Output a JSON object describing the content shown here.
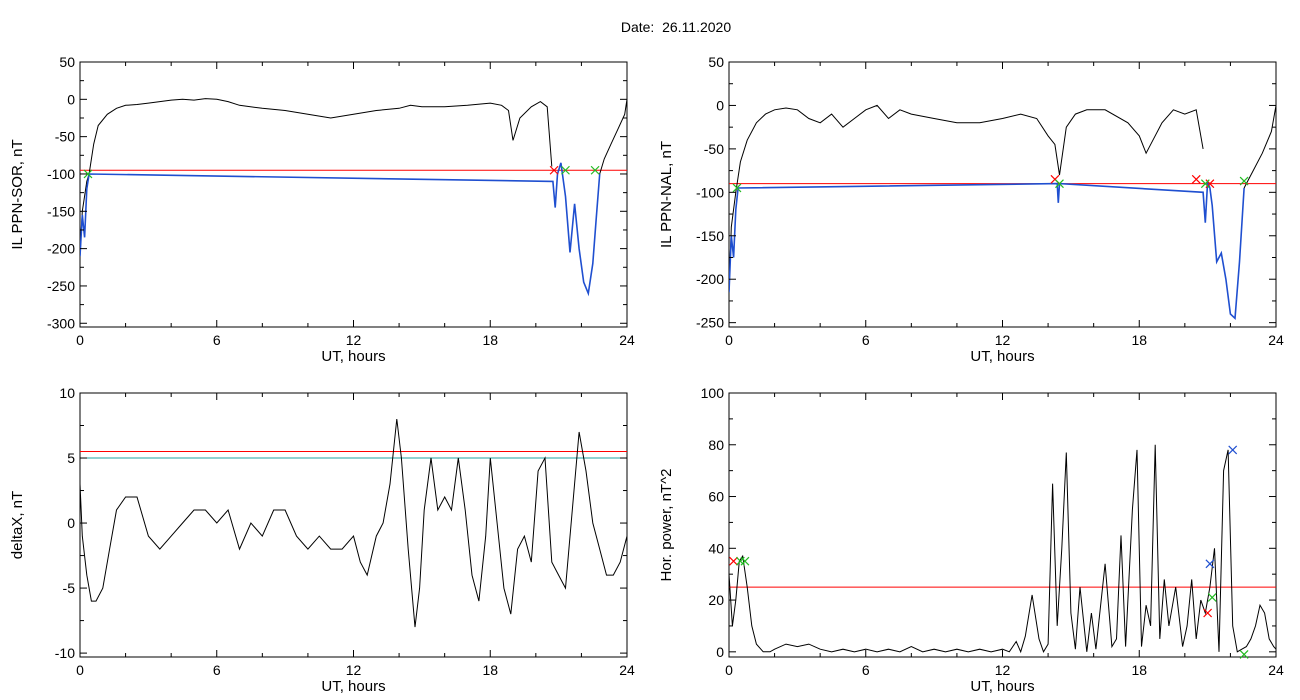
{
  "header": {
    "title": "Date:  26.11.2020"
  },
  "chart_data": [
    {
      "type": "line",
      "xlabel": "UT, hours",
      "ylabel": "IL PPN-SOR, nT",
      "xlim": [
        0,
        24
      ],
      "ylim": [
        -305,
        50
      ],
      "xticks": [
        0,
        6,
        12,
        18,
        24
      ],
      "yticks": [
        50,
        0,
        -50,
        -100,
        -150,
        -200,
        -250,
        -300
      ],
      "threshold": {
        "value": -95,
        "color": "#ff0000"
      },
      "series": [
        {
          "color": "#000000",
          "x": [
            0,
            0.1,
            0.3,
            0.4,
            0.6,
            0.8,
            1.2,
            1.6,
            2.0,
            2.5,
            3.0,
            3.5,
            4.0,
            4.5,
            5.0,
            5.5,
            6.0,
            6.5,
            7.0,
            8.0,
            9.0,
            10.0,
            11.0,
            12.0,
            13.0,
            14.0,
            14.5,
            15.0,
            16.0,
            17.0,
            18.0,
            18.5,
            18.8,
            19.0,
            19.3,
            19.8,
            20.2,
            20.5,
            20.7
          ],
          "y": [
            -210,
            -150,
            -110,
            -100,
            -60,
            -35,
            -20,
            -12,
            -8,
            -7,
            -5,
            -3,
            -1,
            0,
            -1,
            1,
            0,
            -3,
            -8,
            -12,
            -15,
            -20,
            -25,
            -20,
            -15,
            -12,
            -8,
            -10,
            -10,
            -8,
            -5,
            -8,
            -15,
            -55,
            -25,
            -10,
            -3,
            -10,
            -90
          ]
        },
        {
          "color": "#1f4fd0",
          "x": [
            0,
            0.1,
            0.2,
            0.3,
            0.4,
            20.75,
            20.85,
            20.95,
            21.1,
            21.3,
            21.5,
            21.7,
            21.9,
            22.1,
            22.3,
            22.5,
            22.65,
            22.8
          ],
          "y": [
            -210,
            -155,
            -185,
            -120,
            -100,
            -110,
            -145,
            -100,
            -85,
            -130,
            -205,
            -140,
            -200,
            -245,
            -260,
            -220,
            -160,
            -100
          ]
        },
        {
          "color": "#000000",
          "x": [
            22.8,
            23.0,
            23.3,
            23.6,
            23.9,
            24.0
          ],
          "y": [
            -100,
            -80,
            -60,
            -40,
            -20,
            0
          ]
        }
      ],
      "markers": [
        {
          "x": 0.35,
          "y": -100,
          "color": "#22bb22"
        },
        {
          "x": 20.8,
          "y": -95,
          "color": "#ff0000"
        },
        {
          "x": 21.3,
          "y": -95,
          "color": "#22bb22"
        },
        {
          "x": 22.6,
          "y": -95,
          "color": "#22bb22"
        }
      ]
    },
    {
      "type": "line",
      "xlabel": "UT, hours",
      "ylabel": "IL PPN-NAL, nT",
      "xlim": [
        0,
        24
      ],
      "ylim": [
        -255,
        50
      ],
      "xticks": [
        0,
        6,
        12,
        18,
        24
      ],
      "yticks": [
        50,
        0,
        -50,
        -100,
        -150,
        -200,
        -250
      ],
      "threshold": {
        "value": -90,
        "color": "#ff0000"
      },
      "series": [
        {
          "color": "#000000",
          "x": [
            0,
            0.1,
            0.3,
            0.5,
            0.8,
            1.2,
            1.6,
            2.0,
            2.5,
            3.0,
            3.5,
            4.0,
            4.5,
            5.0,
            5.5,
            6.0,
            6.5,
            7.0,
            7.5,
            8.0,
            9.0,
            10.0,
            11.0,
            12.0,
            12.8,
            13.5,
            14.0,
            14.3,
            14.5,
            14.8,
            15.2,
            15.7,
            16.5,
            17.5,
            18.0,
            18.3,
            18.6,
            19.0,
            19.5,
            20.0,
            20.5,
            20.8
          ],
          "y": [
            -215,
            -140,
            -100,
            -65,
            -40,
            -20,
            -10,
            -5,
            -3,
            -5,
            -15,
            -20,
            -10,
            -25,
            -15,
            -5,
            0,
            -15,
            -5,
            -10,
            -15,
            -20,
            -20,
            -15,
            -10,
            -15,
            -35,
            -45,
            -80,
            -25,
            -10,
            -5,
            -5,
            -20,
            -35,
            -55,
            -40,
            -20,
            -5,
            -10,
            -5,
            -50
          ]
        },
        {
          "color": "#1f4fd0",
          "x": [
            0,
            0.1,
            0.2,
            0.3,
            0.4,
            14.4,
            14.45,
            14.5,
            20.8,
            20.9,
            21.0,
            21.1,
            21.2,
            21.4,
            21.6,
            21.8,
            22.0,
            22.2,
            22.4,
            22.6
          ],
          "y": [
            -215,
            -150,
            -175,
            -120,
            -95,
            -90,
            -112,
            -90,
            -100,
            -135,
            -88,
            -95,
            -115,
            -180,
            -170,
            -200,
            -240,
            -245,
            -180,
            -95
          ]
        },
        {
          "color": "#000000",
          "x": [
            22.6,
            23.0,
            23.4,
            23.8,
            24.0
          ],
          "y": [
            -95,
            -75,
            -55,
            -30,
            0
          ]
        }
      ],
      "markers": [
        {
          "x": 0.35,
          "y": -95,
          "color": "#22bb22"
        },
        {
          "x": 14.3,
          "y": -85,
          "color": "#ff0000"
        },
        {
          "x": 14.5,
          "y": -90,
          "color": "#22bb22"
        },
        {
          "x": 20.5,
          "y": -85,
          "color": "#ff0000"
        },
        {
          "x": 21.1,
          "y": -90,
          "color": "#ff0000"
        },
        {
          "x": 20.9,
          "y": -90,
          "color": "#22bb22"
        },
        {
          "x": 22.6,
          "y": -87,
          "color": "#22bb22"
        }
      ]
    },
    {
      "type": "line",
      "xlabel": "UT, hours",
      "ylabel": "deltaX, nT",
      "xlim": [
        0,
        24
      ],
      "ylim": [
        -10.3,
        10
      ],
      "xticks": [
        0,
        6,
        12,
        18,
        24
      ],
      "yticks": [
        10,
        5,
        0,
        -5,
        -10
      ],
      "thresholds": [
        {
          "value": 5.5,
          "color": "#ff0000"
        },
        {
          "value": 5.0,
          "color": "#20a0a0"
        }
      ],
      "series": [
        {
          "color": "#000000",
          "x": [
            0,
            0.1,
            0.3,
            0.5,
            0.7,
            1.0,
            1.3,
            1.6,
            2.0,
            2.5,
            3.0,
            3.5,
            4.0,
            4.5,
            5.0,
            5.5,
            6.0,
            6.5,
            7.0,
            7.5,
            8.0,
            8.5,
            9.0,
            9.5,
            10.0,
            10.5,
            11.0,
            11.5,
            12.0,
            12.3,
            12.6,
            13.0,
            13.3,
            13.6,
            13.9,
            14.1,
            14.4,
            14.7,
            14.9,
            15.1,
            15.4,
            15.7,
            16.0,
            16.3,
            16.6,
            16.9,
            17.2,
            17.5,
            17.8,
            18.0,
            18.3,
            18.6,
            18.9,
            19.2,
            19.5,
            19.8,
            20.1,
            20.4,
            20.7,
            21.0,
            21.3,
            21.6,
            21.9,
            22.2,
            22.5,
            22.8,
            23.1,
            23.4,
            23.7,
            24.0
          ],
          "y": [
            3,
            -1,
            -4,
            -6,
            -6,
            -5,
            -2,
            1,
            2,
            2,
            -1,
            -2,
            -1,
            0,
            1,
            1,
            0,
            1,
            -2,
            0,
            -1,
            1,
            1,
            -1,
            -2,
            -1,
            -2,
            -2,
            -1,
            -3,
            -4,
            -1,
            0,
            3,
            8,
            5,
            -2,
            -8,
            -5,
            1,
            5,
            1,
            2,
            1,
            5,
            1,
            -4,
            -6,
            -1,
            5,
            0,
            -5,
            -7,
            -2,
            -1,
            -3,
            4,
            5,
            -3,
            -4,
            -5,
            1,
            7,
            4,
            0,
            -2,
            -4,
            -4,
            -3,
            -1
          ]
        }
      ]
    },
    {
      "type": "line",
      "xlabel": "UT, hours",
      "ylabel": "Hor. power, nT^2",
      "xlim": [
        0,
        24
      ],
      "ylim": [
        -2,
        100
      ],
      "xticks": [
        0,
        6,
        12,
        18,
        24
      ],
      "yticks": [
        100,
        80,
        60,
        40,
        20,
        0
      ],
      "threshold": {
        "value": 25,
        "color": "#ff0000"
      },
      "series": [
        {
          "color": "#000000",
          "x": [
            0,
            0.15,
            0.3,
            0.45,
            0.6,
            0.8,
            1.0,
            1.2,
            1.5,
            1.8,
            2.0,
            2.5,
            3.0,
            3.5,
            4.0,
            4.5,
            5.0,
            5.5,
            6.0,
            6.5,
            7.0,
            7.5,
            8.0,
            8.5,
            9.0,
            9.5,
            10.0,
            10.5,
            11.0,
            11.5,
            12.0,
            12.3,
            12.6,
            12.8,
            13.0,
            13.3,
            13.6,
            13.8,
            14.0,
            14.2,
            14.4,
            14.6,
            14.8,
            15.0,
            15.2,
            15.4,
            15.7,
            15.9,
            16.1,
            16.5,
            16.8,
            17.0,
            17.2,
            17.4,
            17.7,
            17.9,
            18.1,
            18.3,
            18.5,
            18.7,
            18.9,
            19.1,
            19.3,
            19.6,
            19.9,
            20.1,
            20.3,
            20.5,
            20.7,
            20.9,
            21.1,
            21.3,
            21.5,
            21.7,
            21.9,
            22.1,
            22.3,
            22.5,
            22.7,
            22.9,
            23.1,
            23.3,
            23.5,
            23.7,
            23.9,
            24.0
          ],
          "y": [
            30,
            10,
            20,
            35,
            37,
            25,
            10,
            3,
            0,
            0,
            1,
            3,
            2,
            3,
            1,
            0,
            1,
            0,
            1,
            0,
            1,
            0,
            2,
            0,
            1,
            0,
            1,
            0,
            1,
            0,
            1,
            0,
            4,
            0,
            6,
            22,
            5,
            0,
            3,
            65,
            10,
            40,
            77,
            15,
            1,
            25,
            0,
            15,
            1,
            34,
            2,
            5,
            45,
            2,
            55,
            78,
            2,
            18,
            10,
            80,
            5,
            28,
            10,
            25,
            2,
            10,
            28,
            5,
            20,
            15,
            25,
            40,
            0,
            70,
            78,
            10,
            0,
            1,
            2,
            5,
            10,
            18,
            15,
            5,
            2,
            1
          ]
        }
      ],
      "markers": [
        {
          "x": 0.2,
          "y": 35,
          "color": "#ff0000"
        },
        {
          "x": 0.5,
          "y": 35,
          "color": "#22bb22"
        },
        {
          "x": 0.7,
          "y": 35,
          "color": "#22bb22"
        },
        {
          "x": 21.0,
          "y": 15,
          "color": "#ff0000"
        },
        {
          "x": 21.1,
          "y": 34,
          "color": "#1f4fd0"
        },
        {
          "x": 21.2,
          "y": 21,
          "color": "#22bb22"
        },
        {
          "x": 22.1,
          "y": 78,
          "color": "#1f4fd0"
        },
        {
          "x": 22.6,
          "y": -1,
          "color": "#22bb22"
        }
      ]
    }
  ]
}
